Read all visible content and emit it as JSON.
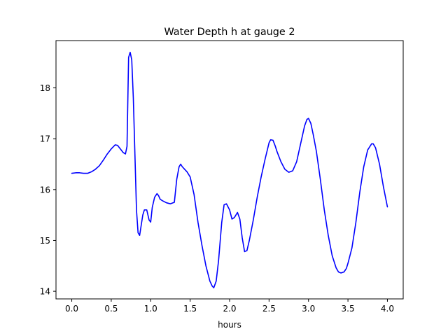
{
  "chart_data": {
    "type": "line",
    "title": "Water Depth h at gauge 2",
    "xlabel": "hours",
    "ylabel": "",
    "xlim": [
      -0.2,
      4.2
    ],
    "ylim": [
      13.85,
      18.93
    ],
    "xticks": [
      0.0,
      0.5,
      1.0,
      1.5,
      2.0,
      2.5,
      3.0,
      3.5,
      4.0
    ],
    "xtick_labels": [
      "0.0",
      "0.5",
      "1.0",
      "1.5",
      "2.0",
      "2.5",
      "3.0",
      "3.5",
      "4.0"
    ],
    "yticks": [
      14,
      15,
      16,
      17,
      18
    ],
    "ytick_labels": [
      "14",
      "15",
      "16",
      "17",
      "18"
    ],
    "grid": false,
    "series": [
      {
        "color": "#0000ff",
        "x": [
          0.0,
          0.05,
          0.1,
          0.15,
          0.2,
          0.25,
          0.3,
          0.35,
          0.4,
          0.45,
          0.5,
          0.55,
          0.58,
          0.6,
          0.65,
          0.68,
          0.7,
          0.72,
          0.74,
          0.76,
          0.78,
          0.8,
          0.82,
          0.84,
          0.86,
          0.88,
          0.9,
          0.92,
          0.95,
          0.98,
          1.0,
          1.02,
          1.05,
          1.08,
          1.1,
          1.12,
          1.15,
          1.2,
          1.25,
          1.3,
          1.33,
          1.36,
          1.38,
          1.4,
          1.43,
          1.46,
          1.5,
          1.55,
          1.6,
          1.65,
          1.7,
          1.75,
          1.78,
          1.8,
          1.83,
          1.86,
          1.9,
          1.93,
          1.96,
          2.0,
          2.03,
          2.06,
          2.08,
          2.1,
          2.13,
          2.16,
          2.19,
          2.22,
          2.25,
          2.3,
          2.35,
          2.4,
          2.45,
          2.5,
          2.52,
          2.55,
          2.58,
          2.6,
          2.65,
          2.7,
          2.75,
          2.8,
          2.85,
          2.9,
          2.95,
          2.98,
          3.0,
          3.03,
          3.06,
          3.1,
          3.15,
          3.2,
          3.25,
          3.3,
          3.35,
          3.38,
          3.41,
          3.45,
          3.48,
          3.5,
          3.55,
          3.6,
          3.65,
          3.7,
          3.75,
          3.8,
          3.82,
          3.85,
          3.9,
          3.95,
          4.0
        ],
        "y": [
          16.32,
          16.33,
          16.33,
          16.32,
          16.32,
          16.35,
          16.4,
          16.47,
          16.58,
          16.7,
          16.8,
          16.88,
          16.87,
          16.83,
          16.73,
          16.7,
          16.85,
          18.6,
          18.7,
          18.55,
          17.8,
          16.7,
          15.6,
          15.15,
          15.1,
          15.3,
          15.5,
          15.6,
          15.6,
          15.4,
          15.36,
          15.65,
          15.85,
          15.92,
          15.88,
          15.81,
          15.78,
          15.74,
          15.72,
          15.75,
          16.2,
          16.45,
          16.5,
          16.45,
          16.4,
          16.35,
          16.25,
          15.9,
          15.35,
          14.9,
          14.5,
          14.2,
          14.1,
          14.07,
          14.2,
          14.6,
          15.35,
          15.7,
          15.72,
          15.6,
          15.42,
          15.45,
          15.5,
          15.55,
          15.42,
          15.05,
          14.78,
          14.8,
          15.0,
          15.4,
          15.85,
          16.25,
          16.6,
          16.92,
          16.98,
          16.97,
          16.85,
          16.75,
          16.55,
          16.4,
          16.34,
          16.37,
          16.55,
          16.9,
          17.25,
          17.38,
          17.4,
          17.3,
          17.08,
          16.75,
          16.2,
          15.6,
          15.1,
          14.7,
          14.46,
          14.38,
          14.36,
          14.38,
          14.45,
          14.55,
          14.85,
          15.35,
          15.95,
          16.45,
          16.78,
          16.9,
          16.9,
          16.82,
          16.5,
          16.05,
          15.66
        ]
      }
    ]
  }
}
